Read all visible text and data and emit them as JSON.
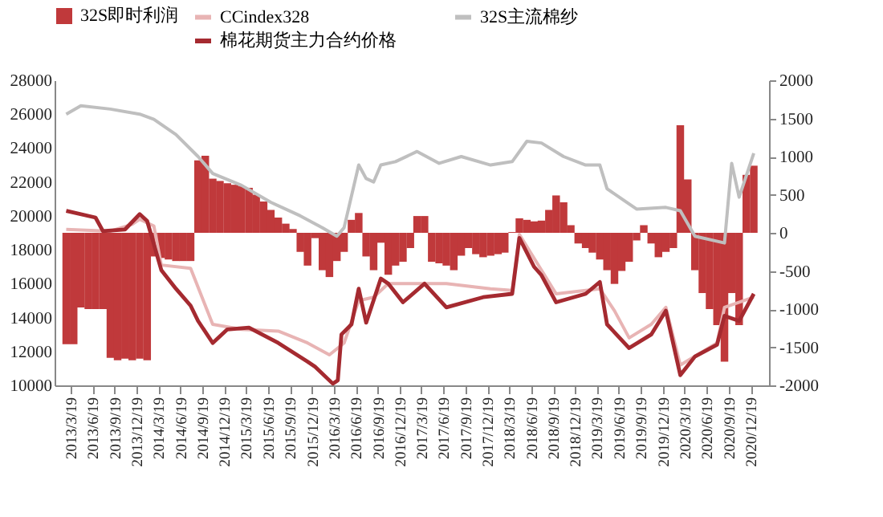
{
  "chart_data": {
    "type": "line",
    "legend": "top",
    "xlim": [
      "2013-02-14",
      "2021-01-31"
    ],
    "xticks": [
      {
        "value": "2013-03-19",
        "label": "2013/3/19"
      },
      {
        "value": "2013-06-19",
        "label": "2013/6/19"
      },
      {
        "value": "2013-09-19",
        "label": "2013/9/19"
      },
      {
        "value": "2013-12-19",
        "label": "2013/12/19"
      },
      {
        "value": "2014-03-19",
        "label": "2014/3/19"
      },
      {
        "value": "2014-06-19",
        "label": "2014/6/19"
      },
      {
        "value": "2014-09-19",
        "label": "2014/9/19"
      },
      {
        "value": "2014-12-19",
        "label": "2014/12/19"
      },
      {
        "value": "2015-03-19",
        "label": "2015/3/19"
      },
      {
        "value": "2015-06-19",
        "label": "2015/6/19"
      },
      {
        "value": "2015-09-19",
        "label": "2015/9/19"
      },
      {
        "value": "2015-12-19",
        "label": "2015/12/19"
      },
      {
        "value": "2016-03-19",
        "label": "2016/3/19"
      },
      {
        "value": "2016-06-19",
        "label": "2016/6/19"
      },
      {
        "value": "2016-09-19",
        "label": "2016/9/19"
      },
      {
        "value": "2016-12-19",
        "label": "2016/12/19"
      },
      {
        "value": "2017-03-19",
        "label": "2017/3/19"
      },
      {
        "value": "2017-06-19",
        "label": "2017/6/19"
      },
      {
        "value": "2017-09-19",
        "label": "2017/9/19"
      },
      {
        "value": "2017-12-19",
        "label": "2017/12/19"
      },
      {
        "value": "2018-03-19",
        "label": "2018/3/19"
      },
      {
        "value": "2018-06-19",
        "label": "2018/6/19"
      },
      {
        "value": "2018-09-19",
        "label": "2018/9/19"
      },
      {
        "value": "2018-12-19",
        "label": "2018/12/19"
      },
      {
        "value": "2019-03-19",
        "label": "2019/3/19"
      },
      {
        "value": "2019-06-19",
        "label": "2019/6/19"
      },
      {
        "value": "2019-09-19",
        "label": "2019/9/19"
      },
      {
        "value": "2019-12-19",
        "label": "2019/12/19"
      },
      {
        "value": "2020-03-19",
        "label": "2020/3/19"
      },
      {
        "value": "2020-06-19",
        "label": "2020/6/19"
      },
      {
        "value": "2020-09-19",
        "label": "2020/9/19"
      },
      {
        "value": "2020-12-19",
        "label": "2020/12/19"
      }
    ],
    "ylim": [
      10000,
      28000
    ],
    "yticks": [
      10000,
      12000,
      14000,
      16000,
      18000,
      20000,
      22000,
      24000,
      26000,
      28000
    ],
    "y2lim": [
      -2000,
      2000
    ],
    "y2ticks": [
      -2000,
      -1500,
      -1000,
      -500,
      0,
      500,
      1000,
      1500,
      2000
    ],
    "series": [
      {
        "name": "32S即时利润",
        "type": "bar",
        "axis": "y2",
        "color": "#c0393b",
        "x": [
          "2013-03",
          "2013-04",
          "2013-05",
          "2013-06",
          "2013-07",
          "2013-08",
          "2013-09",
          "2013-10",
          "2013-11",
          "2013-12",
          "2014-01",
          "2014-02",
          "2014-03",
          "2014-04",
          "2014-05",
          "2014-06",
          "2014-07",
          "2014-08",
          "2014-09",
          "2014-10",
          "2014-11",
          "2014-12",
          "2015-01",
          "2015-02",
          "2015-03",
          "2015-04",
          "2015-05",
          "2015-06",
          "2015-07",
          "2015-08",
          "2015-09",
          "2015-10",
          "2015-11",
          "2015-12",
          "2016-01",
          "2016-02",
          "2016-03",
          "2016-04",
          "2016-05",
          "2016-06",
          "2016-07",
          "2016-08",
          "2016-09",
          "2016-10",
          "2016-11",
          "2016-12",
          "2017-01",
          "2017-02",
          "2017-03",
          "2017-04",
          "2017-05",
          "2017-06",
          "2017-07",
          "2017-08",
          "2017-09",
          "2017-10",
          "2017-11",
          "2017-12",
          "2018-01",
          "2018-02",
          "2018-03",
          "2018-04",
          "2018-05",
          "2018-06",
          "2018-07",
          "2018-08",
          "2018-09",
          "2018-10",
          "2018-11",
          "2018-12",
          "2019-01",
          "2019-02",
          "2019-03",
          "2019-04",
          "2019-05",
          "2019-06",
          "2019-07",
          "2019-08",
          "2019-09",
          "2019-10",
          "2019-11",
          "2019-12",
          "2020-01",
          "2020-02",
          "2020-03",
          "2020-04",
          "2020-05",
          "2020-06",
          "2020-07",
          "2020-08",
          "2020-09",
          "2020-10",
          "2020-11",
          "2020-12",
          "2021-01"
        ],
        "values": [
          -1460,
          -1460,
          -980,
          -1000,
          -1000,
          -1000,
          -1640,
          -1670,
          -1650,
          -1670,
          -1650,
          -1670,
          -310,
          -330,
          -350,
          -370,
          -370,
          -370,
          950,
          1010,
          710,
          680,
          650,
          630,
          610,
          590,
          500,
          410,
          300,
          200,
          120,
          50,
          -250,
          -430,
          -70,
          -490,
          -580,
          -370,
          -250,
          170,
          260,
          -310,
          -490,
          -130,
          -550,
          -430,
          -380,
          -200,
          220,
          220,
          -380,
          -400,
          -430,
          -490,
          -300,
          -200,
          -280,
          -320,
          -300,
          -280,
          -260,
          10,
          190,
          170,
          150,
          160,
          300,
          490,
          400,
          100,
          -140,
          -200,
          -260,
          -350,
          -490,
          -670,
          -500,
          -380,
          -100,
          100,
          -140,
          -320,
          -250,
          -200,
          1410,
          700,
          -490,
          -790,
          -1000,
          -1210,
          -1690,
          -790,
          -1210,
          760,
          880
        ]
      },
      {
        "name": "CCindex328",
        "color": "#e8b4b4",
        "x": [
          "2013-03",
          "2013-09",
          "2013-12",
          "2014-01",
          "2014-03",
          "2014-04",
          "2014-08",
          "2014-11",
          "2015-03",
          "2015-08",
          "2015-12",
          "2016-03",
          "2016-05",
          "2016-07",
          "2016-09",
          "2016-11",
          "2017-03",
          "2017-07",
          "2018-01",
          "2018-04",
          "2018-05",
          "2018-08",
          "2018-10",
          "2019-04",
          "2019-06",
          "2019-08",
          "2019-11",
          "2020-01",
          "2020-03",
          "2020-08",
          "2020-09",
          "2021-01"
        ],
        "values": [
          19200,
          19100,
          19500,
          19800,
          19400,
          17100,
          16900,
          13600,
          13300,
          13200,
          12500,
          11800,
          12500,
          15000,
          15200,
          16000,
          16000,
          16000,
          15700,
          15600,
          18900,
          16800,
          15400,
          15700,
          14400,
          12800,
          13600,
          14600,
          11200,
          12500,
          14600,
          15200
        ]
      },
      {
        "name": "32S主流棉纱",
        "color": "#bfbfbf",
        "x": [
          "2013-03",
          "2013-05",
          "2013-09",
          "2014-01",
          "2014-03",
          "2014-06",
          "2014-09",
          "2014-11",
          "2015-03",
          "2015-07",
          "2015-11",
          "2016-02",
          "2016-04",
          "2016-05",
          "2016-07",
          "2016-08",
          "2016-09",
          "2016-10",
          "2016-12",
          "2017-03",
          "2017-06",
          "2017-09",
          "2018-01",
          "2018-04",
          "2018-06",
          "2018-08",
          "2018-11",
          "2019-02",
          "2019-04",
          "2019-05",
          "2019-09",
          "2020-01",
          "2020-03",
          "2020-05",
          "2020-09",
          "2020-10",
          "2020-11",
          "2021-01"
        ],
        "values": [
          26000,
          26500,
          26300,
          26000,
          25700,
          24800,
          23500,
          22500,
          21800,
          20800,
          20000,
          19300,
          18800,
          19300,
          23000,
          22200,
          22000,
          23000,
          23200,
          23800,
          23100,
          23500,
          23000,
          23200,
          24400,
          24300,
          23500,
          23000,
          23000,
          21600,
          20400,
          20500,
          20300,
          18800,
          18400,
          23100,
          21100,
          23700
        ]
      },
      {
        "name": "棉花期货主力合约价格",
        "color": "#a52a30",
        "x": [
          "2013-03",
          "2013-07",
          "2013-08",
          "2013-11",
          "2014-01",
          "2014-02",
          "2014-04",
          "2014-06",
          "2014-08",
          "2014-09",
          "2014-11",
          "2015-01",
          "2015-04",
          "2015-08",
          "2015-12",
          "2016-01",
          "2016-03-15",
          "2016-04-05",
          "2016-04-20",
          "2016-06",
          "2016-07",
          "2016-08",
          "2016-10",
          "2016-11",
          "2017-01",
          "2017-04",
          "2017-07",
          "2017-12",
          "2018-04",
          "2018-05",
          "2018-07",
          "2018-08",
          "2018-10",
          "2019-02",
          "2019-04",
          "2019-05",
          "2019-08",
          "2019-11",
          "2020-01",
          "2020-03",
          "2020-05",
          "2020-08",
          "2020-09",
          "2020-11",
          "2021-01"
        ],
        "values": [
          20300,
          19900,
          19100,
          19200,
          20100,
          19700,
          16800,
          15700,
          14700,
          13800,
          12500,
          13300,
          13400,
          12500,
          11400,
          11100,
          10100,
          10300,
          13000,
          13600,
          15700,
          13700,
          16300,
          16000,
          14900,
          16000,
          14600,
          15200,
          15400,
          18700,
          17000,
          16500,
          14900,
          15400,
          16100,
          13600,
          12200,
          13000,
          14400,
          10600,
          11700,
          12400,
          14100,
          13800,
          15400
        ]
      }
    ]
  }
}
